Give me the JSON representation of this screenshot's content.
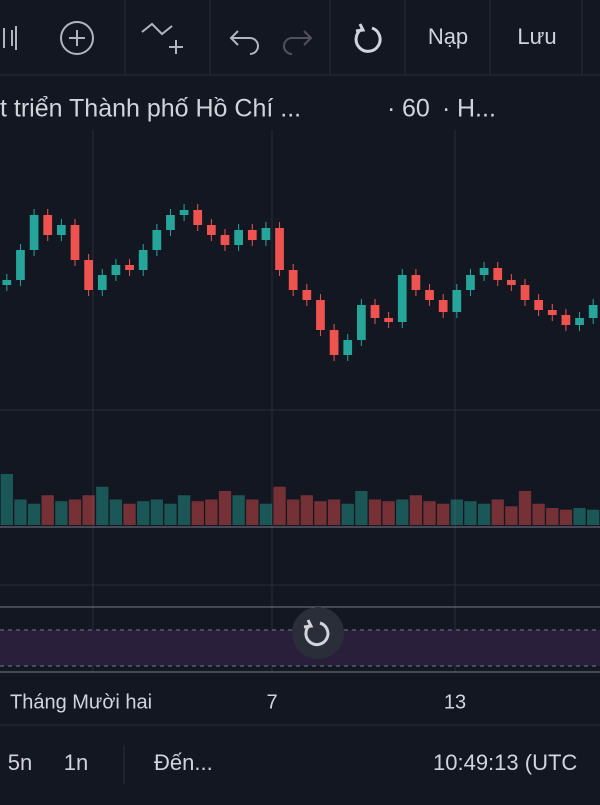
{
  "toolbar": {
    "load": "Nạp",
    "save": "Lưu"
  },
  "header": {
    "symbol": "t triển Thành phố Hồ Chí ...",
    "separator": "·",
    "interval": "60",
    "exchange": "H..."
  },
  "chart_data": {
    "type": "candlestick",
    "open": [
      125,
      130,
      160,
      195,
      175,
      185,
      150,
      120,
      135,
      145,
      140,
      160,
      180,
      195,
      200,
      185,
      175,
      165,
      180,
      170,
      182,
      140,
      120,
      110,
      80,
      55,
      70,
      105,
      92,
      88,
      135,
      120,
      110,
      98,
      120,
      135,
      142,
      130,
      125,
      110,
      100,
      95,
      85,
      92
    ],
    "high": [
      136,
      166,
      201,
      201,
      191,
      191,
      156,
      141,
      151,
      151,
      166,
      186,
      201,
      206,
      206,
      191,
      181,
      186,
      186,
      188,
      188,
      146,
      126,
      116,
      86,
      76,
      111,
      111,
      98,
      141,
      141,
      126,
      116,
      126,
      141,
      148,
      148,
      136,
      131,
      116,
      106,
      101,
      98,
      111
    ],
    "low": [
      119,
      124,
      154,
      169,
      169,
      144,
      114,
      114,
      129,
      134,
      134,
      154,
      174,
      189,
      179,
      169,
      159,
      159,
      164,
      164,
      134,
      114,
      104,
      74,
      49,
      49,
      64,
      86,
      82,
      82,
      114,
      104,
      92,
      92,
      114,
      129,
      124,
      119,
      104,
      94,
      89,
      79,
      79,
      86
    ],
    "close": [
      130,
      160,
      195,
      175,
      185,
      150,
      120,
      135,
      145,
      140,
      160,
      180,
      195,
      200,
      185,
      175,
      165,
      180,
      170,
      182,
      140,
      120,
      110,
      80,
      55,
      70,
      105,
      92,
      88,
      135,
      120,
      110,
      98,
      120,
      135,
      142,
      130,
      125,
      110,
      100,
      95,
      85,
      92,
      105
    ],
    "ylim": [
      0,
      280
    ],
    "up_color": "#26a69a",
    "down_color": "#ef5350",
    "volume": {
      "values": [
        60,
        30,
        25,
        35,
        28,
        30,
        35,
        45,
        30,
        25,
        28,
        30,
        25,
        35,
        28,
        30,
        40,
        35,
        30,
        25,
        45,
        30,
        35,
        28,
        30,
        25,
        40,
        30,
        28,
        30,
        35,
        28,
        25,
        30,
        28,
        25,
        30,
        22,
        40,
        25,
        20,
        18,
        20,
        18
      ],
      "ylim": [
        0,
        100
      ]
    },
    "x_labels": [
      "Tháng Mười hai",
      "7",
      "13"
    ]
  },
  "footer": {
    "ranges": [
      "5n",
      "1n"
    ],
    "goto": "Đến...",
    "clock": "10:49:13 (UTC"
  }
}
